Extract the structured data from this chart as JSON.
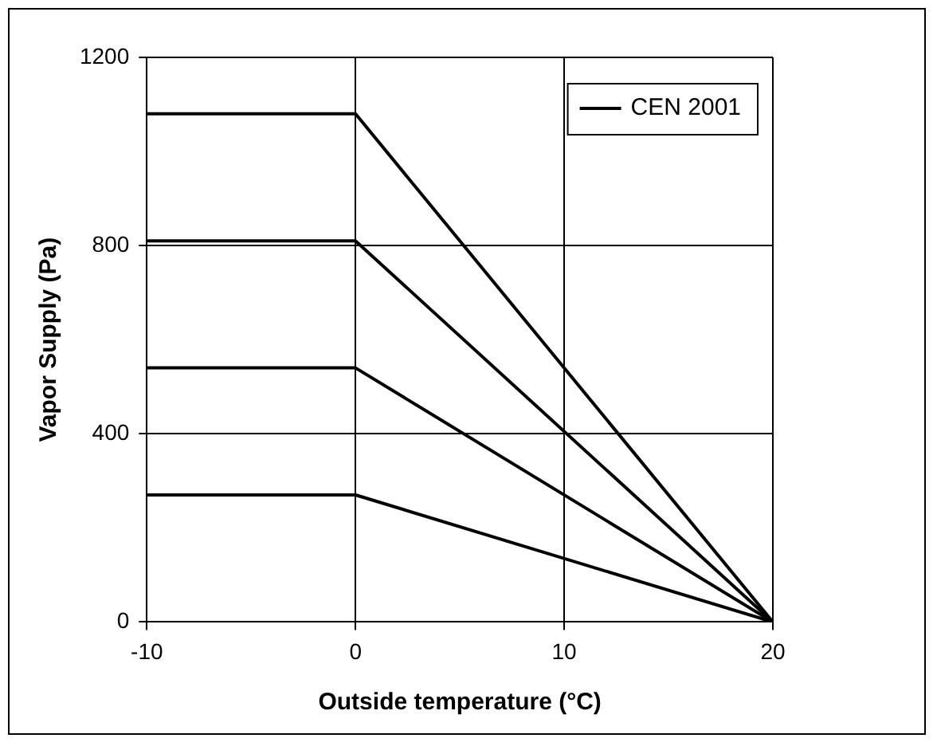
{
  "chart_data": {
    "type": "line",
    "xlabel": "Outside temperature (°C)",
    "ylabel": "Vapor Supply (Pa)",
    "series": [
      {
        "name": "CEN 2001",
        "color": "#000000",
        "x": [
          -10,
          0,
          20
        ],
        "values": [
          1080,
          1080,
          0
        ]
      },
      {
        "color": "#000000",
        "x": [
          -10,
          0,
          20
        ],
        "values": [
          810,
          810,
          0
        ]
      },
      {
        "color": "#000000",
        "x": [
          -10,
          0,
          20
        ],
        "values": [
          540,
          540,
          0
        ]
      },
      {
        "color": "#000000",
        "x": [
          -10,
          0,
          20
        ],
        "values": [
          270,
          270,
          0
        ]
      }
    ],
    "xlim": [
      -10,
      20
    ],
    "xticks": [
      -10,
      0,
      10,
      20
    ],
    "ylim": [
      0,
      1200
    ],
    "yticks": [
      0,
      400,
      800,
      1200
    ],
    "grid": true,
    "legend": "top right",
    "marker": "none",
    "line_style": "solid"
  }
}
